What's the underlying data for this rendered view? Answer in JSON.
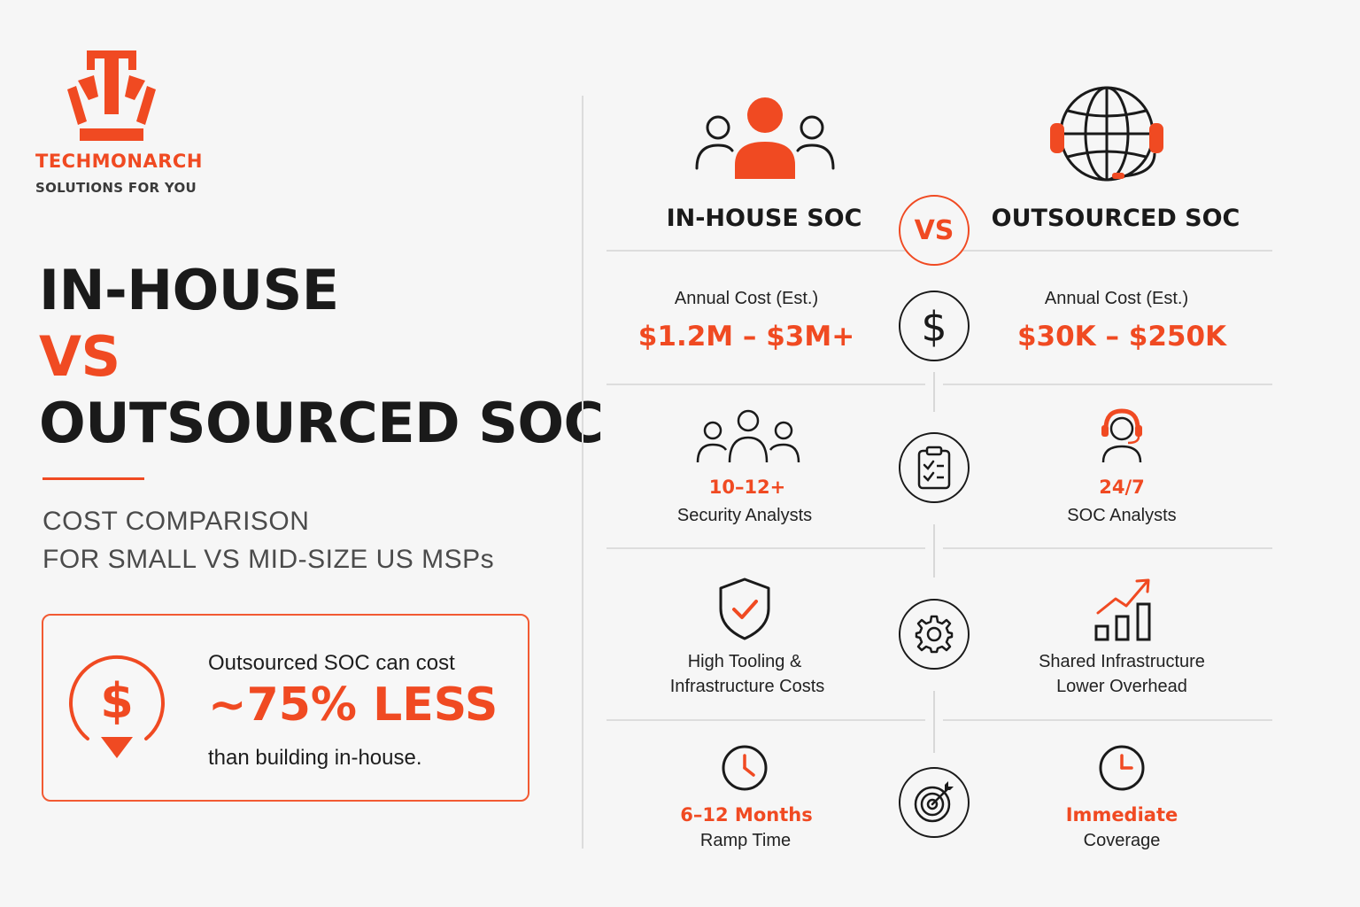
{
  "brand": {
    "name": "TECHMONARCH",
    "tagline": "SOLUTIONS FOR YOU"
  },
  "left": {
    "title_line1": "IN-HOUSE",
    "title_line2": "VS",
    "title_line3": "OUTSOURCED SOC",
    "subtitle_line1": "COST COMPARISON",
    "subtitle_line2": "FOR SMALL VS MID-SIZE US MSPs",
    "savings": {
      "line1": "Outsourced SOC can cost",
      "highlight": "~75% LESS",
      "line3": "than building in-house."
    }
  },
  "comparison": {
    "vs_badge": "VS",
    "inhouse": {
      "heading": "IN-HOUSE SOC",
      "cost_label": "Annual Cost (Est.)",
      "cost_value": "$1.2M – $3M+",
      "staff_value": "10–12+",
      "staff_label": "Security Analysts",
      "tooling_line1": "High Tooling &",
      "tooling_line2": "Infrastructure Costs",
      "ramp_value": "6–12 Months",
      "ramp_label": "Ramp Time"
    },
    "outsourced": {
      "heading": "OUTSOURCED SOC",
      "cost_label": "Annual Cost (Est.)",
      "cost_value": "$30K – $250K",
      "staff_value": "24/7",
      "staff_label": "SOC Analysts",
      "tooling_line1": "Shared Infrastructure",
      "tooling_line2": "Lower Overhead",
      "ramp_value": "Immediate",
      "ramp_label": "Coverage"
    }
  },
  "icons": {
    "logo": "crown-logo-icon",
    "savings": "dollar-down-icon",
    "inhouse_header": "team-icon",
    "outsourced_header": "globe-headset-icon",
    "row_cost": "dollar-icon",
    "row_staff": "clipboard-checklist-icon",
    "row_tooling": "gear-icon",
    "row_ramp": "target-icon",
    "inhouse_staff": "group-icon",
    "outsourced_staff": "agent-headset-icon",
    "inhouse_tooling": "shield-check-icon",
    "outsourced_tooling": "bar-chart-growth-icon",
    "inhouse_ramp": "clock-icon",
    "outsourced_ramp": "clock-icon"
  },
  "colors": {
    "accent": "#f04a22",
    "text": "#1a1a1a",
    "muted": "#4b4b4b",
    "background": "#f6f6f6"
  }
}
